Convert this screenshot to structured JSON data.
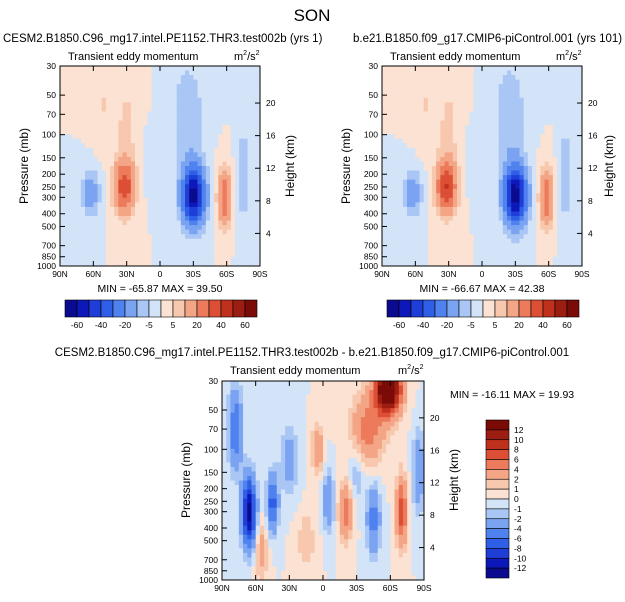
{
  "figure": {
    "title": "SON",
    "colors": {
      "level_scale": [
        "#0b0b8f",
        "#0d18b8",
        "#1f3ed8",
        "#2f5fe6",
        "#4f82ee",
        "#7aa3f2",
        "#a9c6f5",
        "#d3e3f8",
        "#fbe2d2",
        "#f8c8ae",
        "#f3a586",
        "#ec7a5b",
        "#dc4f35",
        "#c0311d",
        "#9c1d12",
        "#7a0b06"
      ]
    },
    "panels": [
      {
        "title": "CESM2.B1850.C96_mg17.intel.PE1152.THR3.test002b (yrs 1)",
        "field": "Transient eddy momentum",
        "units": "m",
        "units_sup": "2",
        "units_tail": "/s",
        "units_sup2": "2",
        "stats": "MIN = -65.87   MAX = 39.50"
      },
      {
        "title": "b.e21.B1850.f09_g17.CMIP6-piControl.001 (yrs 101)",
        "field": "Transient eddy momentum",
        "units": "m",
        "units_sup": "2",
        "units_tail": "/s",
        "units_sup2": "2",
        "stats": "MIN = -66.67   MAX = 42.38"
      },
      {
        "title": "CESM2.B1850.C96_mg17.intel.PE1152.THR3.test002b - b.e21.B1850.f09_g17.CMIP6-piControl.001",
        "field": "Transient eddy momentum",
        "units": "m",
        "units_sup": "2",
        "units_tail": "/s",
        "units_sup2": "2",
        "stats": "MIN = -16.11   MAX =  19.93"
      }
    ]
  },
  "chart_data": [
    {
      "type": "heatmap",
      "title": "CESM2.B1850.C96_mg17.intel.PE1152.THR3.test002b (yrs 1)",
      "field": "Transient eddy momentum",
      "units": "m2/s2",
      "xlabel": "",
      "ylabel": "Pressure (mb)",
      "y2label": "Height (km)",
      "x_ticks": [
        "90N",
        "60N",
        "30N",
        "0",
        "30S",
        "60S",
        "90S"
      ],
      "y_ticks": [
        "30",
        "50",
        "70",
        "100",
        "150",
        "200",
        "250",
        "300",
        "400",
        "500",
        "700",
        "850",
        "1000"
      ],
      "y2_ticks": [
        "20",
        "16",
        "12",
        "8",
        "4"
      ],
      "min": -65.87,
      "max": 39.5,
      "colorbar_labels": [
        "-60",
        "-40",
        "-20",
        "-5",
        "5",
        "20",
        "40",
        "60"
      ],
      "features": [
        {
          "lat": 33,
          "pressure": 250,
          "value": 38
        },
        {
          "lat": -30,
          "pressure": 280,
          "value": -66
        },
        {
          "lat": 60,
          "pressure": 300,
          "value": -18
        },
        {
          "lat": -58,
          "pressure": 300,
          "value": 30
        }
      ]
    },
    {
      "type": "heatmap",
      "title": "b.e21.B1850.f09_g17.CMIP6-piControl.001 (yrs 101)",
      "field": "Transient eddy momentum",
      "units": "m2/s2",
      "xlabel": "",
      "ylabel": "Pressure (mb)",
      "y2label": "Height (km)",
      "x_ticks": [
        "90N",
        "60N",
        "30N",
        "0",
        "30S",
        "60S",
        "90S"
      ],
      "y_ticks": [
        "30",
        "50",
        "70",
        "100",
        "150",
        "200",
        "250",
        "300",
        "400",
        "500",
        "700",
        "850",
        "1000"
      ],
      "y2_ticks": [
        "20",
        "16",
        "12",
        "8",
        "4"
      ],
      "min": -66.67,
      "max": 42.38,
      "colorbar_labels": [
        "-60",
        "-40",
        "-20",
        "-5",
        "5",
        "20",
        "40",
        "60"
      ],
      "features": [
        {
          "lat": 32,
          "pressure": 250,
          "value": 42
        },
        {
          "lat": -30,
          "pressure": 280,
          "value": -67
        },
        {
          "lat": 60,
          "pressure": 300,
          "value": -15
        },
        {
          "lat": -58,
          "pressure": 300,
          "value": 30
        }
      ]
    },
    {
      "type": "heatmap",
      "title": "CESM2.B1850.C96_mg17.intel.PE1152.THR3.test002b - b.e21.B1850.f09_g17.CMIP6-piControl.001",
      "field": "Transient eddy momentum",
      "units": "m2/s2",
      "xlabel": "",
      "ylabel": "Pressure (mb)",
      "y2label": "Height (km)",
      "x_ticks": [
        "90N",
        "60N",
        "30N",
        "0",
        "30S",
        "60S",
        "90S"
      ],
      "y_ticks": [
        "30",
        "50",
        "70",
        "100",
        "150",
        "200",
        "250",
        "300",
        "400",
        "500",
        "700",
        "850",
        "1000"
      ],
      "y2_ticks": [
        "20",
        "16",
        "12",
        "8",
        "4"
      ],
      "min": -16.11,
      "max": 19.93,
      "colorbar_labels": [
        "12",
        "10",
        "8",
        "6",
        "4",
        "2",
        "1",
        "0",
        "-1",
        "-2",
        "-4",
        "-6",
        "-8",
        "-10",
        "-12"
      ],
      "features": [
        {
          "lat": -58,
          "pressure": 35,
          "value": 19
        },
        {
          "lat": 65,
          "pressure": 300,
          "value": -14
        },
        {
          "lat": 40,
          "pressure": 250,
          "value": -8
        },
        {
          "lat": -20,
          "pressure": 300,
          "value": 6
        }
      ]
    }
  ]
}
